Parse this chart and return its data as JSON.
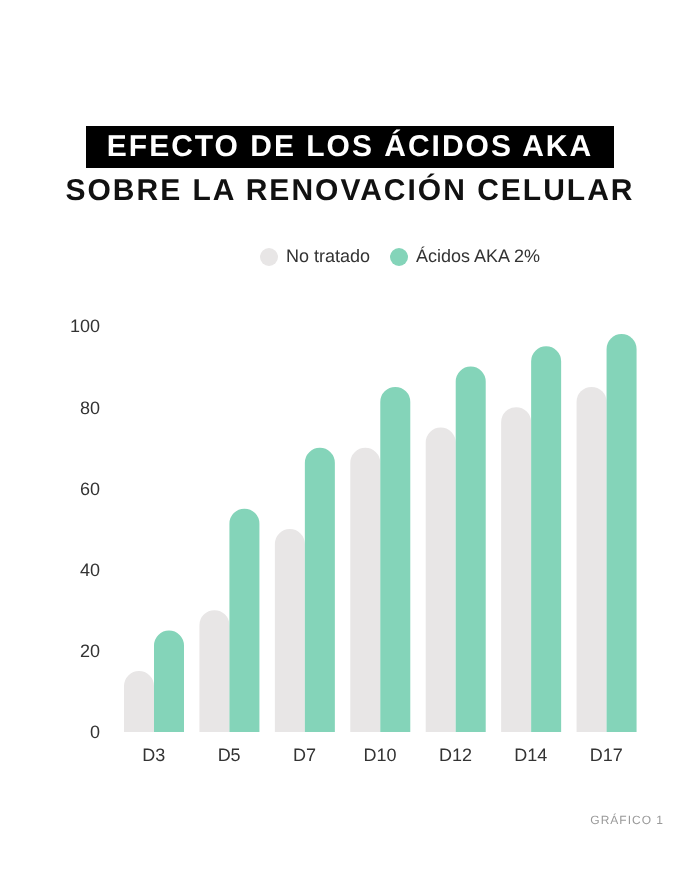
{
  "chart_data": {
    "type": "bar",
    "title": "EFECTO DE LOS ÁCIDOS AKA",
    "subtitle": "SOBRE LA RENOVACIÓN CELULAR",
    "categories": [
      "D3",
      "D5",
      "D7",
      "D10",
      "D12",
      "D14",
      "D17"
    ],
    "series": [
      {
        "name": "No tratado",
        "color": "#e8e6e6",
        "values": [
          15,
          30,
          50,
          70,
          75,
          80,
          85
        ]
      },
      {
        "name": "Ácidos AKA 2%",
        "color": "#84d4b9",
        "values": [
          25,
          55,
          70,
          85,
          90,
          95,
          98
        ]
      }
    ],
    "ylim": [
      0,
      100
    ],
    "yticks": [
      0,
      20,
      40,
      60,
      80,
      100
    ],
    "grid": false,
    "legend": "top",
    "annotations": [
      "GRÁFICO 1"
    ]
  }
}
